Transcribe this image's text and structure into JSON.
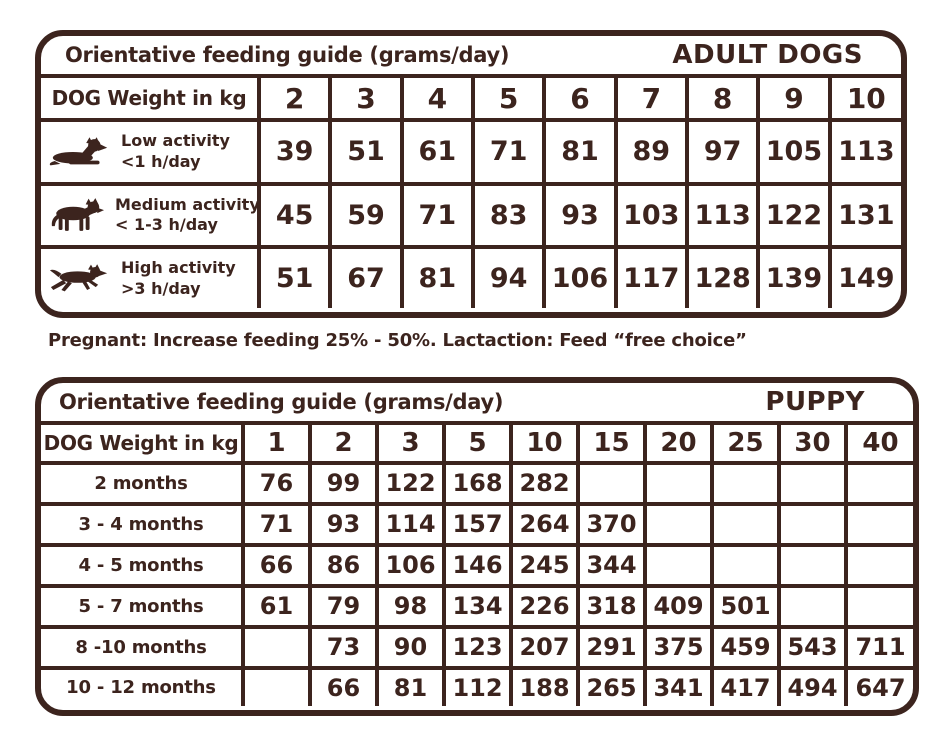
{
  "colors": {
    "brown": "#3c241e",
    "background": "#ffffff"
  },
  "adult_table": {
    "title": "Orientative feeding guide (grams/day)",
    "badge": "ADULT DOGS",
    "header_label": "DOG Weight in kg",
    "weights_kg": [
      "2",
      "3",
      "4",
      "5",
      "6",
      "7",
      "8",
      "9",
      "10"
    ],
    "rows": [
      {
        "icon": "lying-dog-icon",
        "activity": "Low activity",
        "hours": "<1 h/day",
        "values": [
          "39",
          "51",
          "61",
          "71",
          "81",
          "89",
          "97",
          "105",
          "113"
        ]
      },
      {
        "icon": "standing-dog-icon",
        "activity": "Medium activity",
        "hours": "< 1-3 h/day",
        "values": [
          "45",
          "59",
          "71",
          "83",
          "93",
          "103",
          "113",
          "122",
          "131"
        ]
      },
      {
        "icon": "running-dog-icon",
        "activity": "High activity",
        "hours": ">3 h/day",
        "values": [
          "51",
          "67",
          "81",
          "94",
          "106",
          "117",
          "128",
          "139",
          "149"
        ]
      }
    ]
  },
  "note": "Pregnant: Increase feeding 25% - 50%. Lactaction: Feed “free choice”",
  "puppy_table": {
    "title": "Orientative feeding guide (grams/day)",
    "badge": "PUPPY",
    "header_label": "DOG Weight in kg",
    "weights_kg": [
      "1",
      "2",
      "3",
      "5",
      "10",
      "15",
      "20",
      "25",
      "30",
      "40"
    ],
    "rows": [
      {
        "label": "2 months",
        "values": [
          "76",
          "99",
          "122",
          "168",
          "282",
          "",
          "",
          "",
          "",
          ""
        ]
      },
      {
        "label": "3 - 4 months",
        "values": [
          "71",
          "93",
          "114",
          "157",
          "264",
          "370",
          "",
          "",
          "",
          ""
        ]
      },
      {
        "label": "4 - 5 months",
        "values": [
          "66",
          "86",
          "106",
          "146",
          "245",
          "344",
          "",
          "",
          "",
          ""
        ]
      },
      {
        "label": "5 - 7 months",
        "values": [
          "61",
          "79",
          "98",
          "134",
          "226",
          "318",
          "409",
          "501",
          "",
          ""
        ]
      },
      {
        "label": "8 -10 months",
        "values": [
          "",
          "73",
          "90",
          "123",
          "207",
          "291",
          "375",
          "459",
          "543",
          "711"
        ]
      },
      {
        "label": "10 - 12 months",
        "values": [
          "",
          "66",
          "81",
          "112",
          "188",
          "265",
          "341",
          "417",
          "494",
          "647"
        ]
      }
    ]
  }
}
